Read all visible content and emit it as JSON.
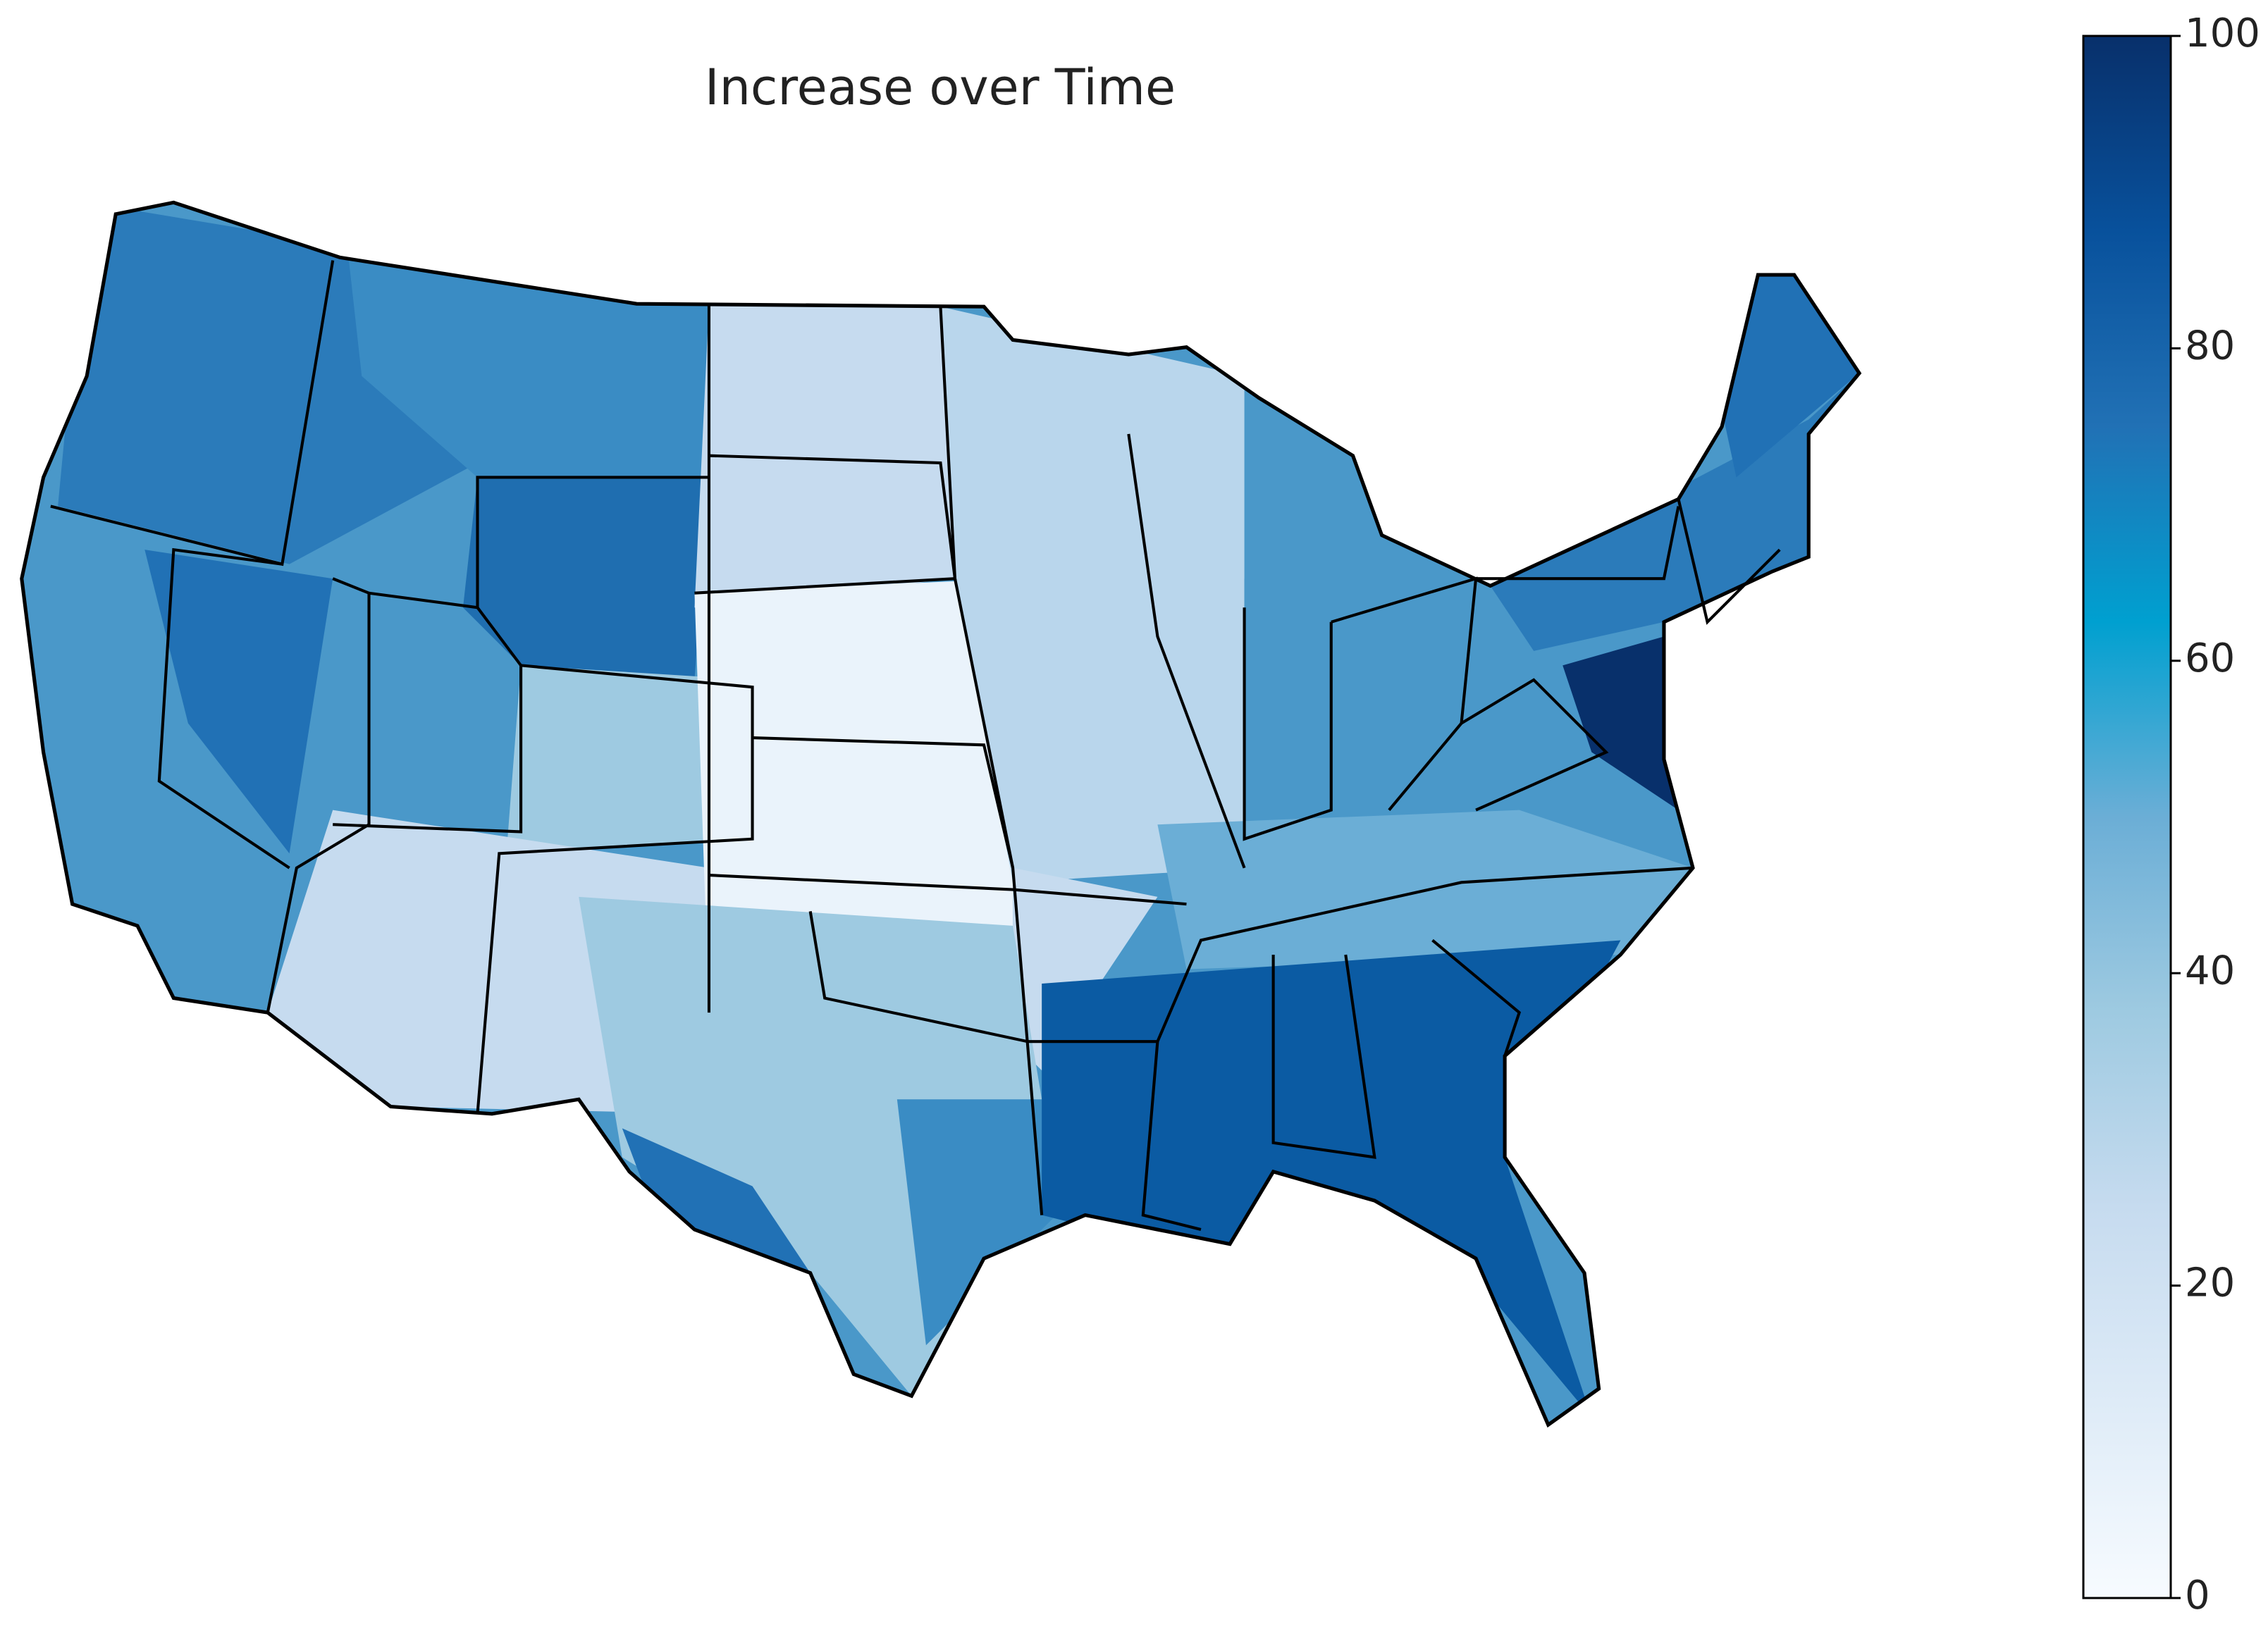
{
  "chart_data": {
    "type": "choropleth",
    "title": "Increase over Time",
    "colorbar": {
      "lim": [
        0,
        100
      ],
      "ticks": [
        0,
        20,
        40,
        60,
        80,
        100
      ],
      "colors": [
        "#f7fbff",
        "#deebf7",
        "#c6dbef",
        "#9ecae1",
        "#6baed6",
        "#00a0d0",
        "#2171b5",
        "#08519c",
        "#08306b"
      ]
    }
  }
}
